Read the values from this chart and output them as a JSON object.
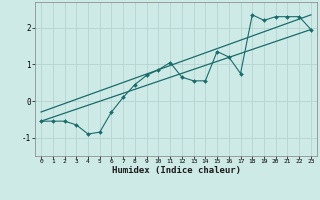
{
  "xlabel": "Humidex (Indice chaleur)",
  "background_color": "#ceeae7",
  "grid_color": "#b0d0cc",
  "line_color": "#1a6b6b",
  "xlim": [
    -0.5,
    23.5
  ],
  "ylim": [
    -1.5,
    2.7
  ],
  "yticks": [
    -1,
    0,
    1,
    2
  ],
  "xticks": [
    0,
    1,
    2,
    3,
    4,
    5,
    6,
    7,
    8,
    9,
    10,
    11,
    12,
    13,
    14,
    15,
    16,
    17,
    18,
    19,
    20,
    21,
    22,
    23
  ],
  "series1_x": [
    0,
    1,
    2,
    3,
    4,
    5,
    6,
    7,
    8,
    9,
    10,
    11,
    12,
    13,
    14,
    15,
    16,
    17,
    18,
    19,
    20,
    21,
    22,
    23
  ],
  "series1_y": [
    -0.55,
    -0.55,
    -0.55,
    -0.65,
    -0.9,
    -0.85,
    -0.3,
    0.1,
    0.45,
    0.7,
    0.85,
    1.05,
    0.65,
    0.55,
    0.55,
    1.35,
    1.2,
    0.75,
    2.35,
    2.2,
    2.3,
    2.3,
    2.3,
    1.95
  ],
  "series2_x": [
    0,
    23
  ],
  "series2_y": [
    -0.55,
    1.95
  ],
  "series3_x": [
    0,
    23
  ],
  "series3_y": [
    -0.3,
    2.35
  ]
}
